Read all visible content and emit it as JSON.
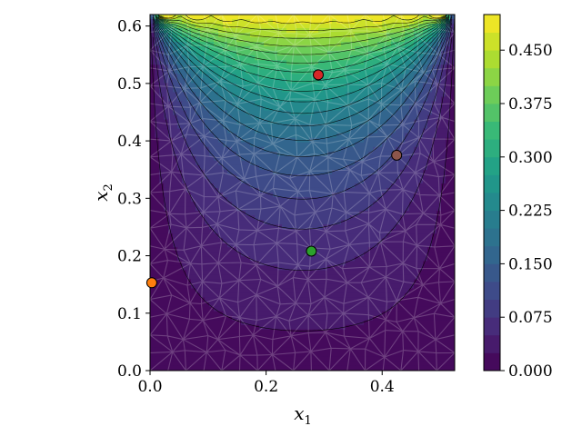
{
  "chart_data": {
    "type": "heatmap",
    "xlabel": "x",
    "xlabel_sub": "1",
    "ylabel": "x",
    "ylabel_sub": "2",
    "xlim": [
      0.0,
      0.525
    ],
    "ylim": [
      0.0,
      0.62
    ],
    "x_ticks": [
      0.0,
      0.2,
      0.4
    ],
    "x_tick_labels": [
      "0.0",
      "0.2",
      "0.4"
    ],
    "y_ticks": [
      0.0,
      0.1,
      0.2,
      0.3,
      0.4,
      0.5,
      0.6
    ],
    "y_tick_labels": [
      "0.0",
      "0.1",
      "0.2",
      "0.3",
      "0.4",
      "0.5",
      "0.6"
    ],
    "colorbar": {
      "vmin": 0.0,
      "vmax": 0.5,
      "ticks": [
        0.0,
        0.075,
        0.15,
        0.225,
        0.3,
        0.375,
        0.45
      ],
      "tick_labels": [
        "0.000",
        "0.075",
        "0.150",
        "0.225",
        "0.300",
        "0.375",
        "0.450"
      ],
      "levels": 20,
      "colormap": "viridis"
    },
    "points": [
      {
        "x": 0.29,
        "y": 0.515,
        "color": "#d62728"
      },
      {
        "x": 0.425,
        "y": 0.375,
        "color": "#8c564b"
      },
      {
        "x": 0.278,
        "y": 0.208,
        "color": "#2ca02c"
      },
      {
        "x": 0.003,
        "y": 0.153,
        "color": "#ff7f0e"
      }
    ],
    "grid": false,
    "mesh_overlay": true
  }
}
